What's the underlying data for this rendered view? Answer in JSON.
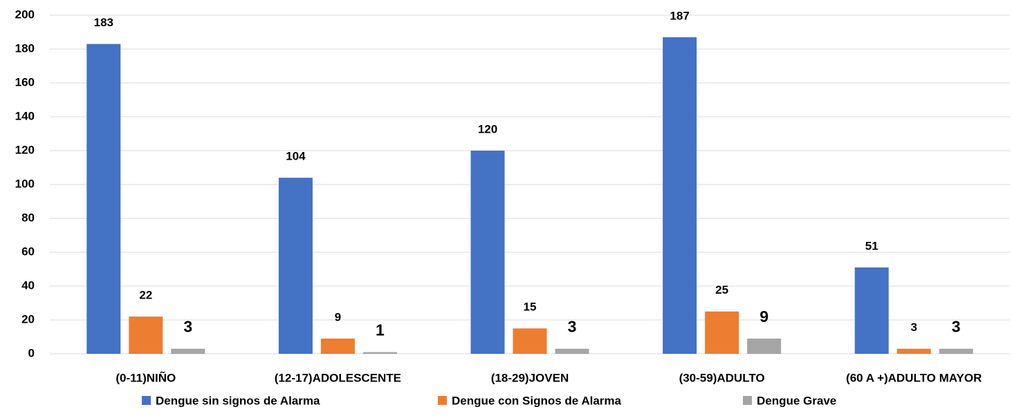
{
  "chart_data": {
    "type": "bar",
    "categories": [
      "(0-11)NIÑO",
      "(12-17)ADOLESCENTE",
      "(18-29)JOVEN",
      "(30-59)ADULTO",
      "(60 A +)ADULTO MAYOR"
    ],
    "series": [
      {
        "name": "Dengue sin signos de Alarma",
        "color": "#4472c4",
        "values": [
          183,
          104,
          120,
          187,
          51
        ]
      },
      {
        "name": "Dengue con Signos de Alarma",
        "color": "#ed7d31",
        "values": [
          22,
          9,
          15,
          25,
          3
        ]
      },
      {
        "name": "Dengue Grave",
        "color": "#a5a5a5",
        "values": [
          3,
          1,
          3,
          9,
          3
        ]
      }
    ],
    "ylim": [
      0,
      200
    ],
    "yticks": [
      0,
      20,
      40,
      60,
      80,
      100,
      120,
      140,
      160,
      180,
      200
    ],
    "grid": true,
    "legend": "bottom"
  }
}
